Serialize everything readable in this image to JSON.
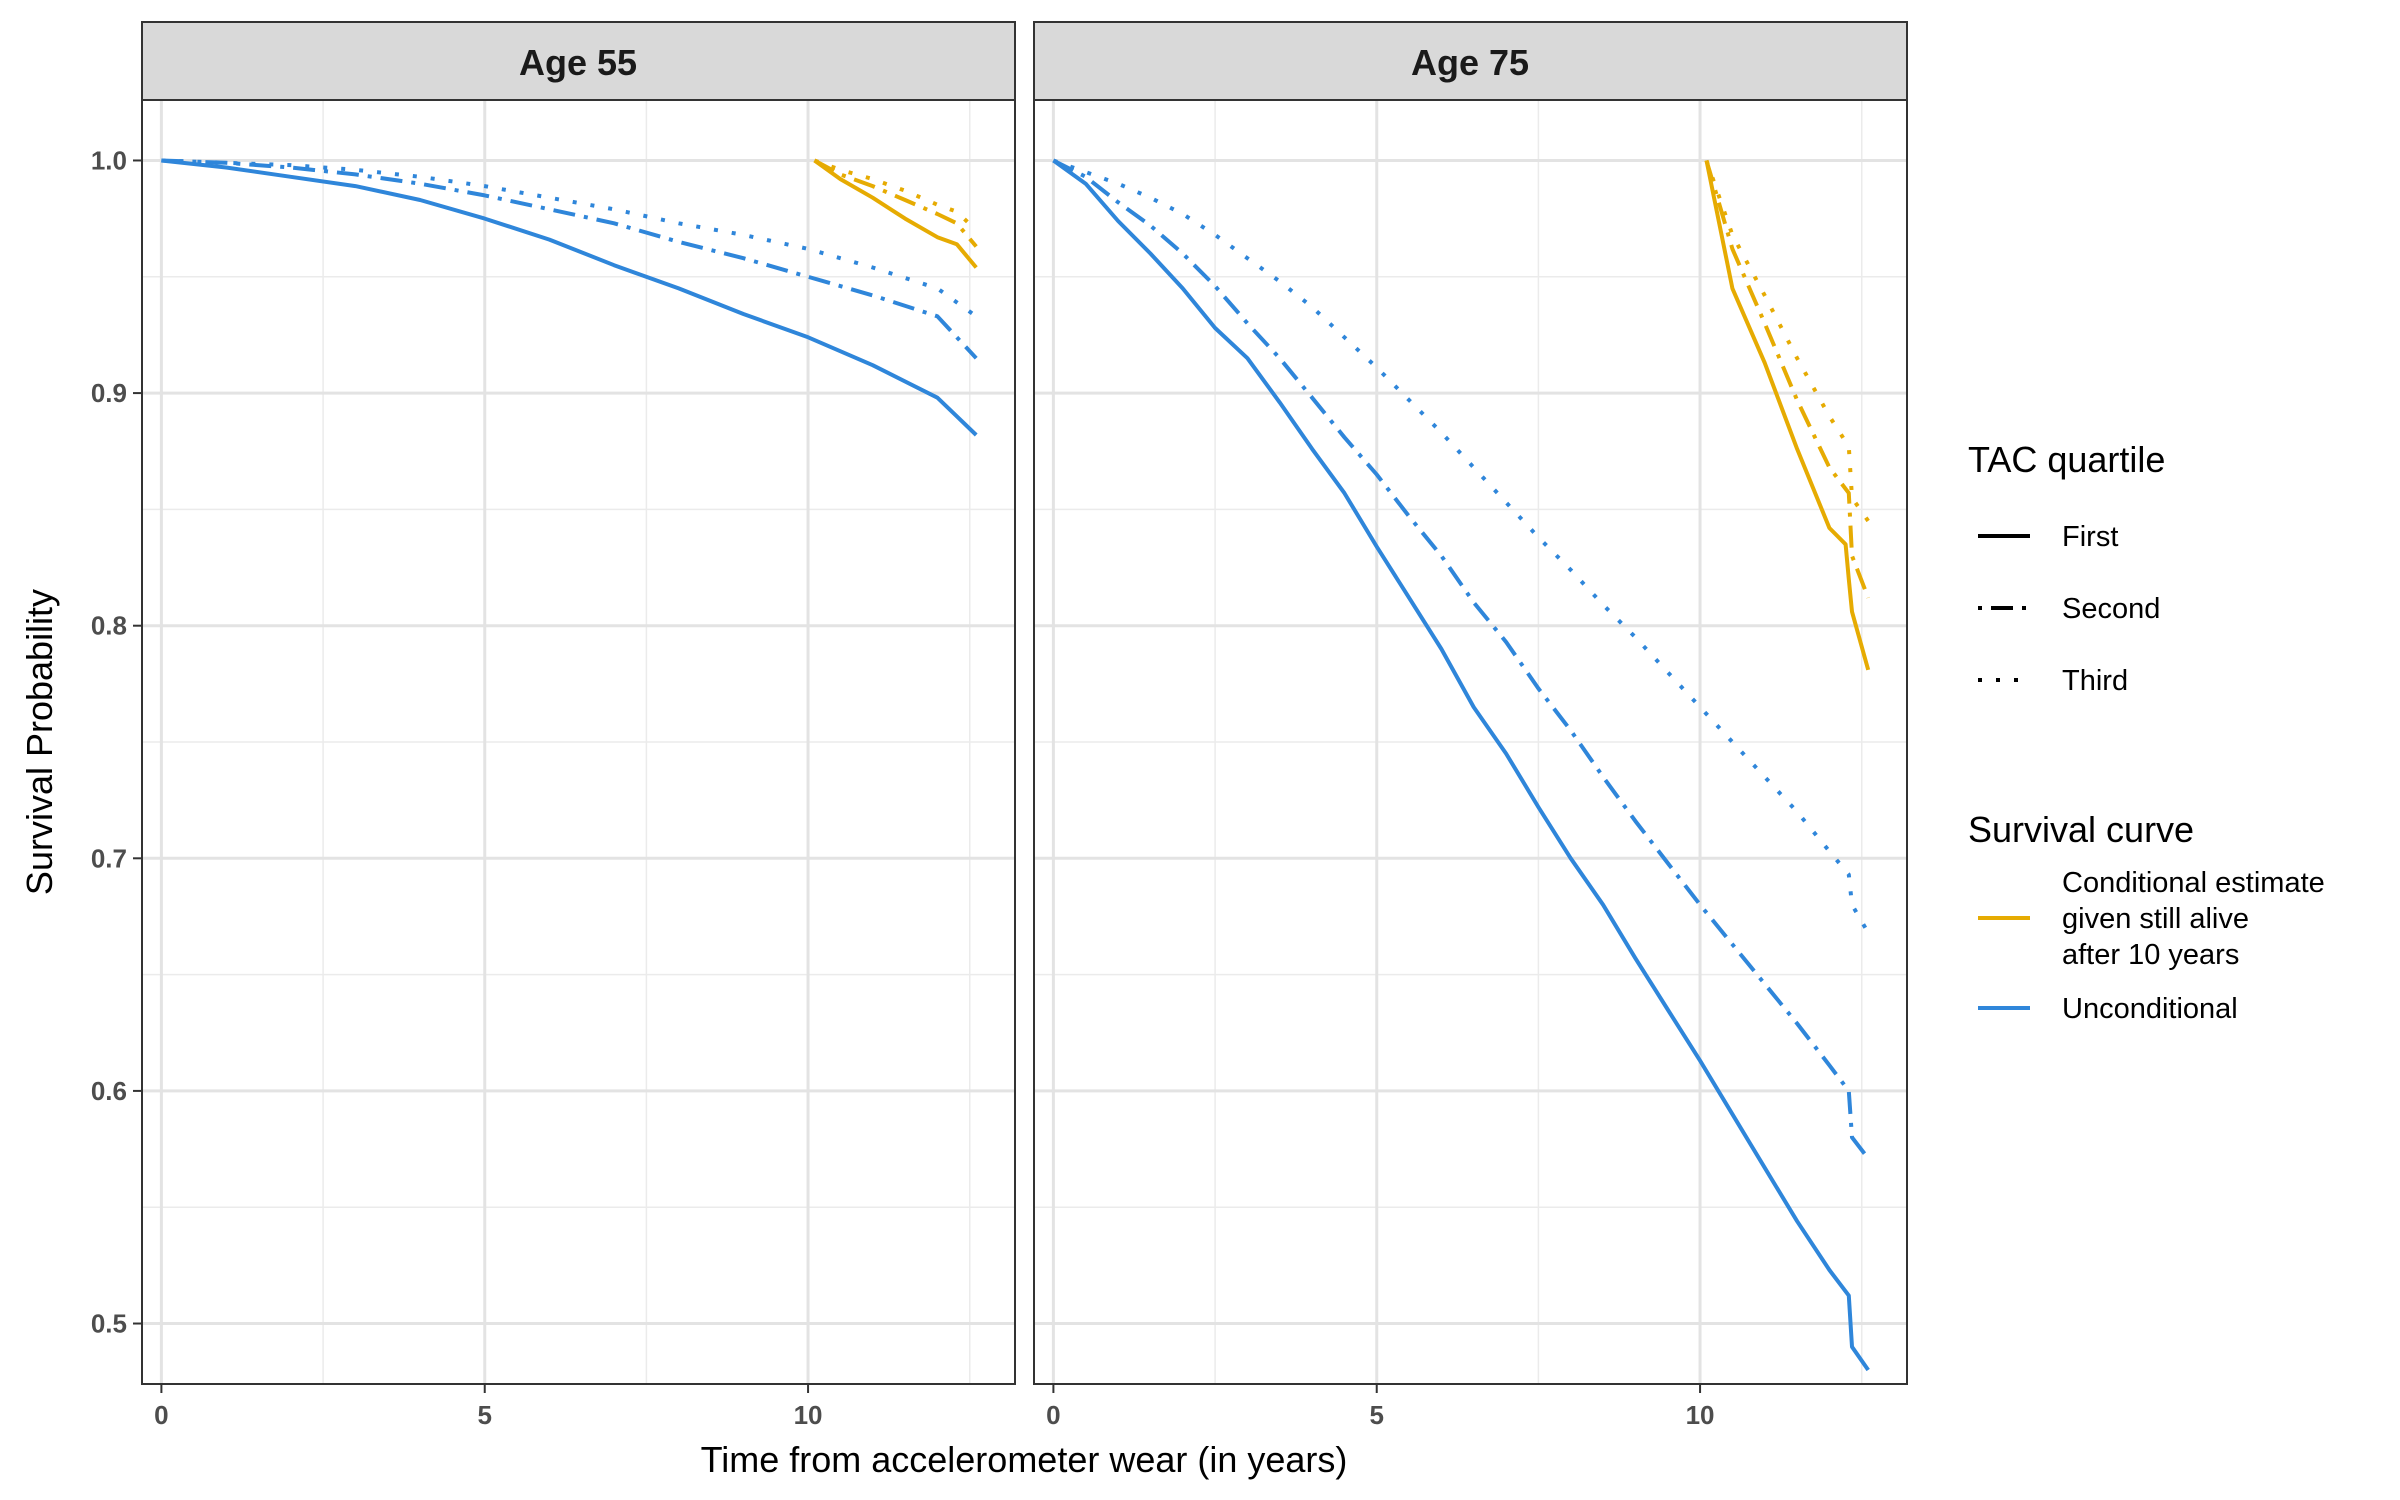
{
  "chart_data": {
    "type": "line",
    "xlabel": "Time from accelerometer wear (in years)",
    "ylabel": "Survival Probability",
    "xlim": [
      -0.3,
      13.2
    ],
    "ylim": [
      0.474,
      1.026
    ],
    "x_ticks": [
      "0",
      "5",
      "10"
    ],
    "y_ticks": [
      "0.5",
      "0.6",
      "0.7",
      "0.8",
      "0.9",
      "1.0"
    ],
    "grid": true,
    "legend_position": "right",
    "colors": {
      "conditional": "#E6AB02",
      "unconditional": "#2F86DA"
    },
    "legend": {
      "linetype_title": "TAC quartile",
      "linetypes": [
        {
          "key": "first",
          "label": "First"
        },
        {
          "key": "second",
          "label": "Second"
        },
        {
          "key": "third",
          "label": "Third"
        }
      ],
      "color_title": "Survival curve",
      "colors": [
        {
          "key": "conditional",
          "lines": [
            "Conditional estimate",
            "given still alive",
            "after 10 years"
          ]
        },
        {
          "key": "unconditional",
          "lines": [
            "Unconditional"
          ]
        }
      ]
    },
    "panels": [
      {
        "title": "Age 55",
        "series": [
          {
            "curve": "unconditional",
            "quartile": "first",
            "x": [
              0,
              1,
              2,
              3,
              4,
              5,
              6,
              7,
              8,
              9,
              10,
              11,
              12,
              12.3,
              12.6
            ],
            "y": [
              1.0,
              0.997,
              0.993,
              0.989,
              0.983,
              0.975,
              0.966,
              0.955,
              0.945,
              0.934,
              0.924,
              0.912,
              0.898,
              0.89,
              0.882
            ]
          },
          {
            "curve": "unconditional",
            "quartile": "second",
            "x": [
              0,
              1,
              2,
              3,
              4,
              5,
              6,
              7,
              8,
              9,
              10,
              11,
              12,
              12.6
            ],
            "y": [
              1.0,
              0.999,
              0.997,
              0.994,
              0.99,
              0.985,
              0.979,
              0.973,
              0.965,
              0.958,
              0.95,
              0.942,
              0.933,
              0.915
            ]
          },
          {
            "curve": "unconditional",
            "quartile": "third",
            "x": [
              0,
              1,
              2,
              3,
              4,
              5,
              6,
              7,
              8,
              9,
              10,
              11,
              12,
              12.6
            ],
            "y": [
              1.0,
              0.999,
              0.998,
              0.996,
              0.993,
              0.989,
              0.984,
              0.979,
              0.973,
              0.968,
              0.962,
              0.954,
              0.945,
              0.933
            ]
          },
          {
            "curve": "conditional",
            "quartile": "first",
            "x": [
              10.1,
              10.5,
              11,
              11.5,
              12,
              12.3,
              12.6
            ],
            "y": [
              1.0,
              0.992,
              0.984,
              0.975,
              0.967,
              0.964,
              0.954
            ]
          },
          {
            "curve": "conditional",
            "quartile": "second",
            "x": [
              10.1,
              10.5,
              11,
              11.5,
              12,
              12.3,
              12.6
            ],
            "y": [
              1.0,
              0.994,
              0.989,
              0.983,
              0.977,
              0.973,
              0.963
            ]
          },
          {
            "curve": "conditional",
            "quartile": "third",
            "x": [
              10.1,
              10.5,
              11,
              11.5,
              12,
              12.3,
              12.6
            ],
            "y": [
              1.0,
              0.996,
              0.992,
              0.987,
              0.981,
              0.978,
              0.97
            ]
          }
        ]
      },
      {
        "title": "Age 75",
        "series": [
          {
            "curve": "unconditional",
            "quartile": "first",
            "x": [
              0,
              0.5,
              1,
              1.5,
              2,
              2.5,
              3,
              3.5,
              4,
              4.5,
              5,
              5.5,
              6,
              6.5,
              7,
              7.5,
              8,
              8.5,
              9,
              9.5,
              10,
              10.5,
              11,
              11.5,
              12,
              12.3,
              12.35,
              12.6
            ],
            "y": [
              1.0,
              0.99,
              0.974,
              0.96,
              0.945,
              0.928,
              0.915,
              0.896,
              0.876,
              0.857,
              0.834,
              0.812,
              0.79,
              0.765,
              0.745,
              0.722,
              0.7,
              0.68,
              0.657,
              0.635,
              0.613,
              0.59,
              0.567,
              0.544,
              0.523,
              0.512,
              0.49,
              0.48
            ]
          },
          {
            "curve": "unconditional",
            "quartile": "second",
            "x": [
              0,
              0.5,
              1,
              1.5,
              2,
              2.5,
              3,
              3.5,
              4,
              4.5,
              5,
              5.5,
              6,
              6.5,
              7,
              7.5,
              8,
              8.5,
              9,
              9.5,
              10,
              10.5,
              11,
              11.5,
              12,
              12.3,
              12.35,
              12.6
            ],
            "y": [
              1.0,
              0.993,
              0.982,
              0.972,
              0.96,
              0.946,
              0.93,
              0.915,
              0.898,
              0.881,
              0.865,
              0.847,
              0.83,
              0.81,
              0.793,
              0.773,
              0.755,
              0.735,
              0.716,
              0.698,
              0.68,
              0.663,
              0.646,
              0.629,
              0.611,
              0.6,
              0.58,
              0.571
            ]
          },
          {
            "curve": "unconditional",
            "quartile": "third",
            "x": [
              0,
              0.5,
              1,
              1.5,
              2,
              2.5,
              3,
              3.5,
              4,
              4.5,
              5,
              5.5,
              6,
              6.5,
              7,
              7.5,
              8,
              8.5,
              9,
              9.5,
              10,
              10.5,
              11,
              11.5,
              12,
              12.3,
              12.35,
              12.6
            ],
            "y": [
              1.0,
              0.995,
              0.99,
              0.984,
              0.977,
              0.968,
              0.958,
              0.948,
              0.937,
              0.924,
              0.911,
              0.897,
              0.883,
              0.868,
              0.853,
              0.838,
              0.824,
              0.809,
              0.795,
              0.78,
              0.765,
              0.75,
              0.735,
              0.72,
              0.703,
              0.693,
              0.68,
              0.668
            ]
          },
          {
            "curve": "conditional",
            "quartile": "first",
            "x": [
              10.1,
              10.5,
              11,
              11.5,
              12,
              12.25,
              12.3,
              12.35,
              12.6
            ],
            "y": [
              1.0,
              0.945,
              0.913,
              0.876,
              0.842,
              0.835,
              0.82,
              0.806,
              0.781
            ]
          },
          {
            "curve": "conditional",
            "quartile": "second",
            "x": [
              10.1,
              10.5,
              11,
              11.5,
              12,
              12.3,
              12.35,
              12.6
            ],
            "y": [
              1.0,
              0.962,
              0.93,
              0.897,
              0.868,
              0.857,
              0.83,
              0.812
            ]
          },
          {
            "curve": "conditional",
            "quartile": "third",
            "x": [
              10.1,
              10.5,
              11,
              11.5,
              12,
              12.3,
              12.35,
              12.6
            ],
            "y": [
              1.0,
              0.968,
              0.942,
              0.915,
              0.89,
              0.877,
              0.855,
              0.845
            ]
          }
        ]
      }
    ]
  }
}
